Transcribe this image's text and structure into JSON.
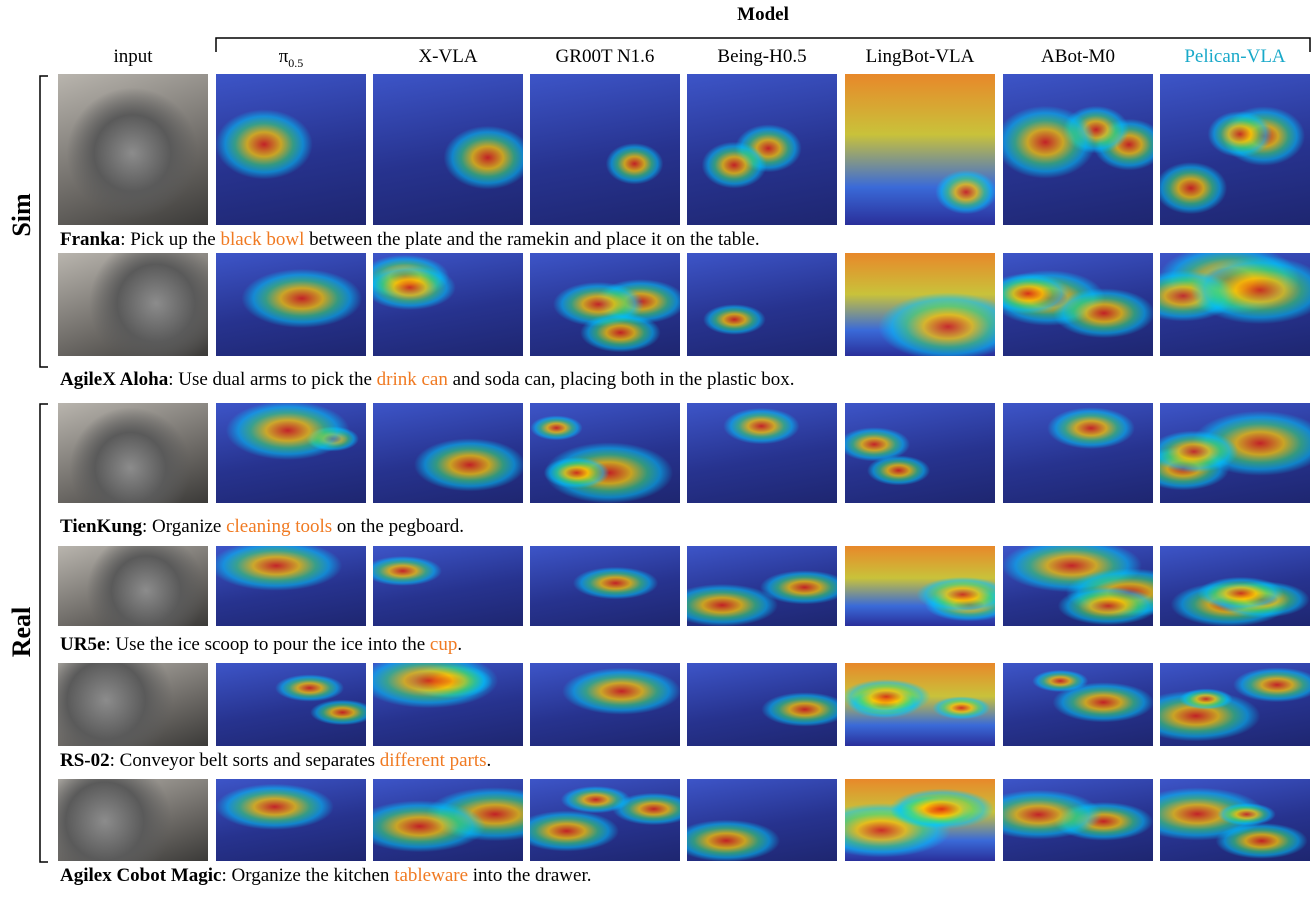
{
  "header": {
    "title": "Model"
  },
  "columns": [
    {
      "label": "input"
    },
    {
      "label": "π",
      "sub": "0.5"
    },
    {
      "label": "X-VLA"
    },
    {
      "label": "GR00T N1.6"
    },
    {
      "label": "Being-H0.5"
    },
    {
      "label": "LingBot-VLA"
    },
    {
      "label": "ABot-M0"
    },
    {
      "label": "Pelican-VLA",
      "color": "#19a9c9"
    }
  ],
  "groups": [
    {
      "label": "Sim",
      "rows": [
        0,
        1
      ]
    },
    {
      "label": "Real",
      "rows": [
        2,
        3,
        4,
        5
      ]
    }
  ],
  "rows": [
    {
      "robot": "Franka",
      "pre": ": Pick up the ",
      "highlight": "black bowl",
      "post": " between the plate and the ramekin and place it on the table."
    },
    {
      "robot": "AgileX Aloha",
      "pre": ": Use dual arms to pick the ",
      "highlight": "drink can",
      "post": " and soda can, placing both in the plastic box."
    },
    {
      "robot": "TienKung",
      "pre": ": Organize ",
      "highlight": "cleaning tools",
      "post": " on the pegboard."
    },
    {
      "robot": "UR5e",
      "pre": ": Use the ice scoop to pour the ice into the ",
      "highlight": "cup",
      "post": "."
    },
    {
      "robot": "RS-02",
      "pre": ": Conveyor belt sorts and separates ",
      "highlight": "different parts",
      "post": "."
    },
    {
      "robot": "Agilex Cobot Magic",
      "pre": ": Organize the kitchen ",
      "highlight": "tableware",
      "post": " into the drawer."
    }
  ]
}
